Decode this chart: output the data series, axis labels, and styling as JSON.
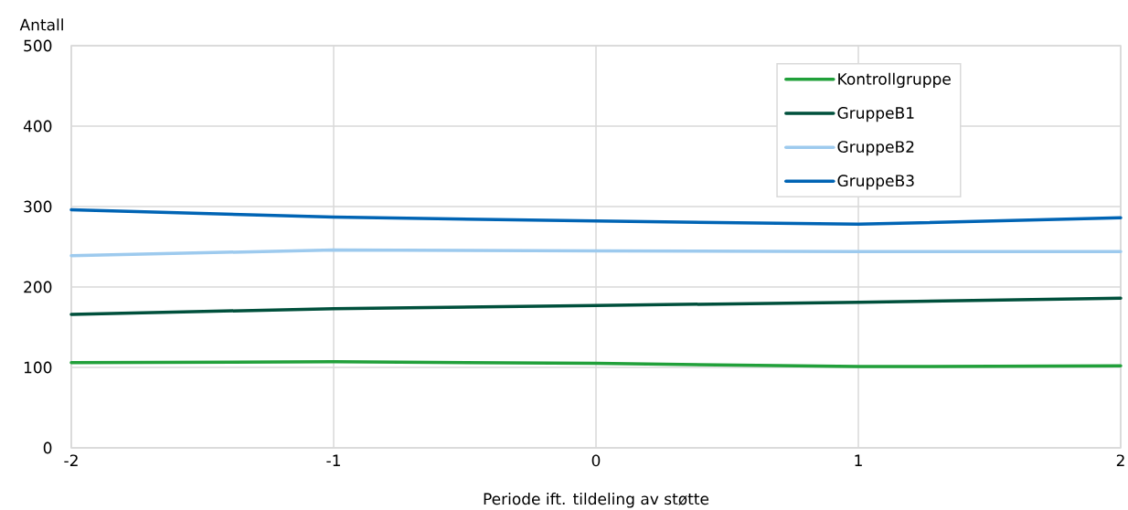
{
  "chart_data": {
    "type": "line",
    "xlabel": "Periode ift. tildeling av støtte",
    "ylabel": "Antall",
    "x": [
      -2,
      -1,
      0,
      1,
      2
    ],
    "xlim": [
      -2,
      2
    ],
    "xticks": [
      -2,
      -1,
      0,
      1,
      2
    ],
    "ylim": [
      0,
      500
    ],
    "yticks": [
      0,
      100,
      200,
      300,
      400,
      500
    ],
    "grid": true,
    "legend": "top right",
    "series": [
      {
        "name": "Kontrollgruppe",
        "color": "#21a03a",
        "values": [
          106,
          107,
          105,
          101,
          102
        ]
      },
      {
        "name": "GruppeB1",
        "color": "#00503c",
        "values": [
          166,
          173,
          177,
          181,
          186
        ]
      },
      {
        "name": "GruppeB2",
        "color": "#9dcaee",
        "values": [
          239,
          246,
          245,
          244,
          244
        ]
      },
      {
        "name": "GruppeB3",
        "color": "#0064b4",
        "values": [
          296,
          287,
          282,
          278,
          286
        ]
      }
    ]
  }
}
